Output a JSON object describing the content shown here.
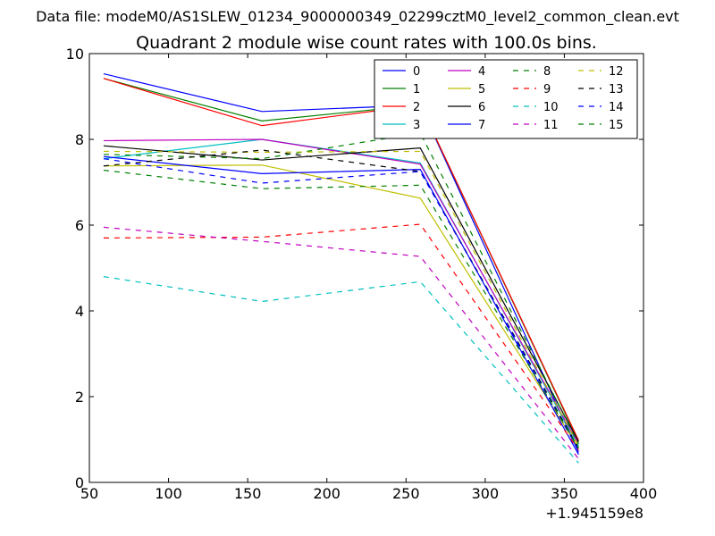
{
  "chart_data": {
    "type": "line",
    "title": "Quadrant 2 module wise count rates with 100.0s bins.",
    "subtitle": "Data file: modeM0/AS1SLEW_01234_9000000349_02299cztM0_level2_common_clean.evt",
    "x_offset_label": "+1.945159e8",
    "xlim": [
      50,
      400
    ],
    "ylim": [
      0,
      10
    ],
    "xticks": [
      50,
      100,
      150,
      200,
      250,
      300,
      350,
      400
    ],
    "yticks": [
      0,
      2,
      4,
      6,
      8,
      10
    ],
    "grid": false,
    "legend_position": "top-right",
    "x": [
      59,
      159,
      259,
      359
    ],
    "series": [
      {
        "name": "0",
        "color": "#0000ff",
        "dash": "solid",
        "values": [
          9.53,
          8.65,
          8.8,
          0.7
        ]
      },
      {
        "name": "1",
        "color": "#008000",
        "dash": "solid",
        "values": [
          9.42,
          8.43,
          8.8,
          0.95
        ]
      },
      {
        "name": "2",
        "color": "#ff0000",
        "dash": "solid",
        "values": [
          9.42,
          8.32,
          8.8,
          0.98
        ]
      },
      {
        "name": "3",
        "color": "#00bfbf",
        "dash": "solid",
        "values": [
          7.55,
          8.0,
          7.45,
          0.85
        ]
      },
      {
        "name": "4",
        "color": "#bf00bf",
        "dash": "solid",
        "values": [
          7.97,
          8.0,
          7.42,
          0.9
        ]
      },
      {
        "name": "5",
        "color": "#bfbf00",
        "dash": "solid",
        "values": [
          7.38,
          7.4,
          6.63,
          0.8
        ]
      },
      {
        "name": "6",
        "color": "#000000",
        "dash": "solid",
        "values": [
          7.85,
          7.52,
          7.8,
          0.95
        ]
      },
      {
        "name": "7",
        "color": "#0000ff",
        "dash": "solid",
        "values": [
          7.6,
          7.2,
          7.3,
          0.65
        ]
      },
      {
        "name": "8",
        "color": "#008000",
        "dash": "dashed",
        "values": [
          7.65,
          7.55,
          8.15,
          0.9
        ]
      },
      {
        "name": "9",
        "color": "#ff0000",
        "dash": "dashed",
        "values": [
          5.7,
          5.72,
          6.02,
          0.75
        ]
      },
      {
        "name": "10",
        "color": "#00bfbf",
        "dash": "dashed",
        "values": [
          4.8,
          4.22,
          4.68,
          0.45
        ]
      },
      {
        "name": "11",
        "color": "#bf00bf",
        "dash": "dashed",
        "values": [
          5.95,
          5.62,
          5.27,
          0.55
        ]
      },
      {
        "name": "12",
        "color": "#bfbf00",
        "dash": "dashed",
        "values": [
          7.72,
          7.7,
          7.72,
          0.85
        ]
      },
      {
        "name": "13",
        "color": "#000000",
        "dash": "dashed",
        "values": [
          7.38,
          7.75,
          7.25,
          0.8
        ]
      },
      {
        "name": "14",
        "color": "#0000ff",
        "dash": "dashed",
        "values": [
          7.55,
          6.98,
          7.25,
          0.75
        ]
      },
      {
        "name": "15",
        "color": "#008000",
        "dash": "dashed",
        "values": [
          7.28,
          6.85,
          6.93,
          0.8
        ]
      }
    ]
  }
}
